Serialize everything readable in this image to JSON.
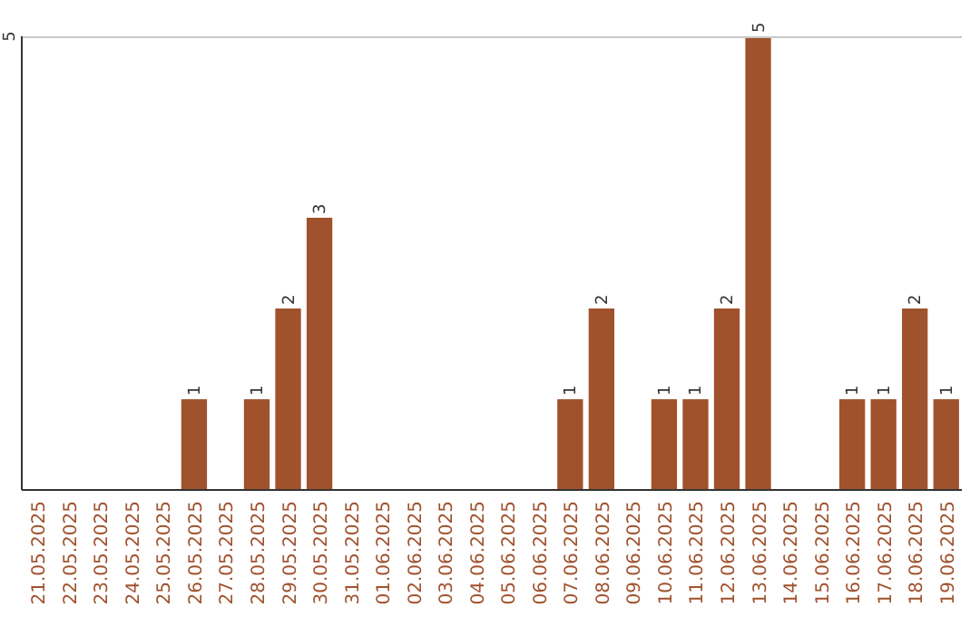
{
  "chart_data": {
    "type": "bar",
    "categories": [
      "21.05.2025",
      "22.05.2025",
      "23.05.2025",
      "24.05.2025",
      "25.05.2025",
      "26.05.2025",
      "27.05.2025",
      "28.05.2025",
      "29.05.2025",
      "30.05.2025",
      "31.05.2025",
      "01.06.2025",
      "02.06.2025",
      "03.06.2025",
      "04.06.2025",
      "05.06.2025",
      "06.06.2025",
      "07.06.2025",
      "08.06.2025",
      "09.06.2025",
      "10.06.2025",
      "11.06.2025",
      "12.06.2025",
      "13.06.2025",
      "14.06.2025",
      "15.06.2025",
      "16.06.2025",
      "17.06.2025",
      "18.06.2025",
      "19.06.2025"
    ],
    "values": [
      null,
      null,
      null,
      null,
      null,
      1,
      null,
      1,
      2,
      3,
      null,
      null,
      null,
      null,
      null,
      null,
      null,
      1,
      2,
      null,
      1,
      1,
      2,
      5,
      null,
      null,
      1,
      1,
      2,
      1
    ],
    "color": "#a0522d",
    "ylim": [
      0,
      5
    ],
    "yticks": [
      5
    ],
    "data_labels": true
  }
}
